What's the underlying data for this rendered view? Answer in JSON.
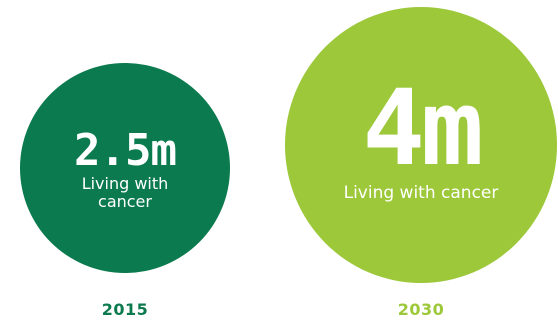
{
  "colors": {
    "dark_green": "#0b7a4e",
    "light_green": "#9cc83a",
    "text_on_circle": "#ffffff"
  },
  "items": [
    {
      "value": "2.5m",
      "label": "Living with cancer",
      "year": "2015"
    },
    {
      "value": "4m",
      "label": "Living with cancer",
      "year": "2030"
    }
  ]
}
